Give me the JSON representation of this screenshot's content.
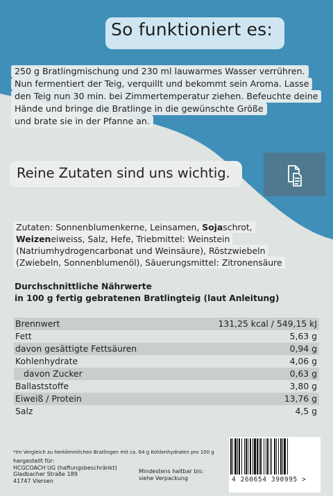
{
  "colors": {
    "blue": "#3f8fb9",
    "grey": "#dfe3e1",
    "doc_box": "#4e7990"
  },
  "header": {
    "title": "So funktioniert es:"
  },
  "instructions": {
    "lines": [
      "250 g Bratlingmischung und 230 ml lauwarmes Wasser verrühren.",
      "Nun fermentiert der Teig, verquillt und bekommt sein Aroma. Lasse",
      "den Teig nun 30 min. bei Zimmertemperatur ziehen. Befeuchte deine",
      "Hände und bringe die Bratlinge in die gewünschte Größe",
      "und brate sie in der Pfanne an."
    ]
  },
  "zutaten_section": {
    "title": "Reine Zutaten sind uns wichtig.",
    "icon": "document-copy-icon"
  },
  "ingredients": {
    "l1_a": "Zutaten: Sonnenblumenkerne, Leinsamen, ",
    "l1_b": "Soja",
    "l1_c": "schrot,",
    "l2_a": "Weizen",
    "l2_b": "eiweiss, Salz, Hefe, Triebmittel: Weinstein",
    "l3": "(Natriumhydrogencarbonat und Weinsäure), Röstzwiebeln",
    "l4": "(Zwiebeln, Sonnenblumenöl), Säuerungsmittel: Zitronensäure"
  },
  "nutrition": {
    "heading_1": "Durchschnittliche Nährwerte",
    "heading_2": "in 100 g fertig gebratenen Bratlingteig (laut Anleitung)",
    "rows": [
      {
        "label": "Brennwert",
        "value": "131,25 kcal / 549,15 kJ"
      },
      {
        "label": "Fett",
        "value": "5,63 g"
      },
      {
        "label": "davon gesättigte Fettsäuren",
        "value": "0,94 g"
      },
      {
        "label": "Kohlenhydrate",
        "value": "4,06 g"
      },
      {
        "label": "davon Zucker",
        "value": "0,63 g"
      },
      {
        "label": "Ballaststoffe",
        "value": "3,80 g"
      },
      {
        "label": "Eiweiß / Protein",
        "value": "13,76 g"
      },
      {
        "label": "Salz",
        "value": "4,5 g"
      }
    ]
  },
  "footer": {
    "footnote": "*Im Vergleich zu herkömmlichen Bratlingen mit ca. 64 g Kohlenhydraten pro 100 g",
    "maker": [
      "hergestellt für:",
      "HCGCOACH UG (haftungsbeschränkt)",
      "Gladbacher Straße 189",
      "41747 Viersen"
    ],
    "mhd": [
      "Mindestens haltbar bis:",
      "siehe Verpackung"
    ],
    "barcode": "4 260654 390995 >"
  }
}
